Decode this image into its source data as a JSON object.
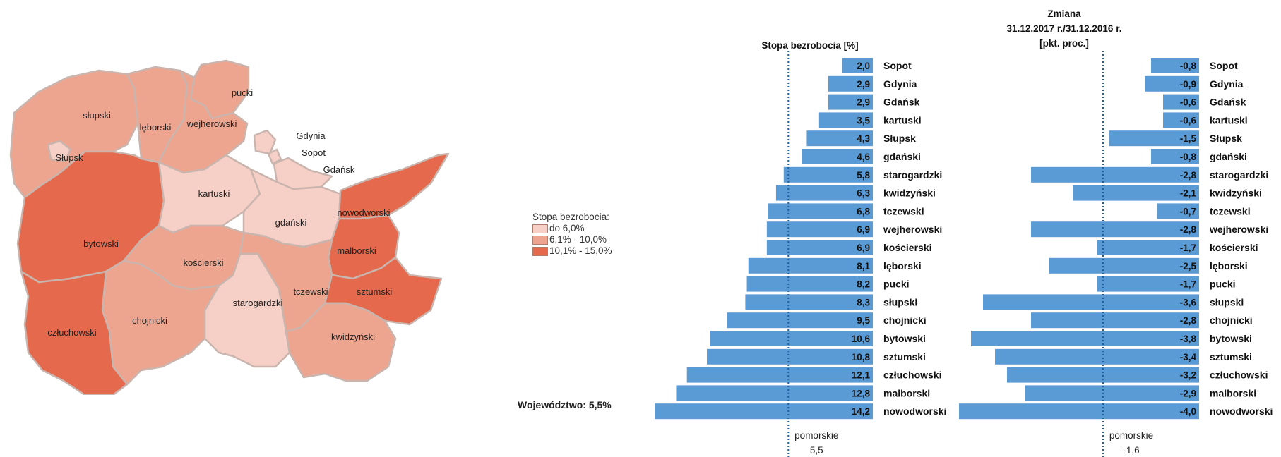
{
  "map": {
    "legend": {
      "title": "Stopa bezrobocia:",
      "items": [
        {
          "label": "do 6,0%",
          "color": "#f6cfc6"
        },
        {
          "label": "6,1% - 10,0%",
          "color": "#eea58f"
        },
        {
          "label": "10,1% - 15,0%",
          "color": "#e5694d"
        }
      ]
    },
    "regions": [
      {
        "name": "pucki",
        "class": 1
      },
      {
        "name": "słupski",
        "class": 1
      },
      {
        "name": "lęborski",
        "class": 1
      },
      {
        "name": "wejherowski",
        "class": 1
      },
      {
        "name": "Słupsk",
        "class": 0
      },
      {
        "name": "Gdynia",
        "class": 0
      },
      {
        "name": "Sopot",
        "class": 0
      },
      {
        "name": "Gdańsk",
        "class": 0
      },
      {
        "name": "kartuski",
        "class": 0
      },
      {
        "name": "gdański",
        "class": 0
      },
      {
        "name": "nowodworski",
        "class": 2
      },
      {
        "name": "malborski",
        "class": 2
      },
      {
        "name": "bytowski",
        "class": 2
      },
      {
        "name": "kościerski",
        "class": 1
      },
      {
        "name": "tczewski",
        "class": 1
      },
      {
        "name": "sztumski",
        "class": 2
      },
      {
        "name": "starogardzki",
        "class": 0
      },
      {
        "name": "chojnicki",
        "class": 1
      },
      {
        "name": "człuchowski",
        "class": 2
      },
      {
        "name": "kwidzyński",
        "class": 1
      }
    ],
    "summary": "Województwo: 5,5%"
  },
  "chart_data": [
    {
      "type": "bar",
      "orientation": "horizontal",
      "title": "Stopa bezrobocia [%]",
      "categories": [
        "Sopot",
        "Gdynia",
        "Gdańsk",
        "kartuski",
        "Słupsk",
        "gdański",
        "starogardzki",
        "kwidzyński",
        "tczewski",
        "wejherowski",
        "kościerski",
        "lęborski",
        "pucki",
        "słupski",
        "chojnicki",
        "bytowski",
        "sztumski",
        "człuchowski",
        "malborski",
        "nowodworski"
      ],
      "values": [
        2.0,
        2.9,
        2.9,
        3.5,
        4.3,
        4.6,
        5.8,
        6.3,
        6.8,
        6.9,
        6.9,
        8.1,
        8.2,
        8.3,
        9.5,
        10.6,
        10.8,
        12.1,
        12.8,
        14.2
      ],
      "value_labels": [
        "2,0",
        "2,9",
        "2,9",
        "3,5",
        "4,3",
        "4,6",
        "5,8",
        "6,3",
        "6,8",
        "6,9",
        "6,9",
        "8,1",
        "8,2",
        "8,3",
        "9,5",
        "10,6",
        "10,8",
        "12,1",
        "12,8",
        "14,2"
      ],
      "reference": {
        "value": 5.5,
        "label": "pomorskie",
        "value_label": "5,5"
      },
      "xlim": [
        0,
        14.2
      ],
      "bar_color": "#5b9bd5"
    },
    {
      "type": "bar",
      "orientation": "horizontal",
      "title_lines": [
        "Zmiana",
        "31.12.2017 r./31.12.2016 r.",
        "[pkt. proc.]"
      ],
      "categories": [
        "Sopot",
        "Gdynia",
        "Gdańsk",
        "kartuski",
        "Słupsk",
        "gdański",
        "starogardzki",
        "kwidzyński",
        "tczewski",
        "wejherowski",
        "kościerski",
        "lęborski",
        "pucki",
        "słupski",
        "chojnicki",
        "bytowski",
        "sztumski",
        "człuchowski",
        "malborski",
        "nowodworski"
      ],
      "values": [
        -0.8,
        -0.9,
        -0.6,
        -0.6,
        -1.5,
        -0.8,
        -2.8,
        -2.1,
        -0.7,
        -2.8,
        -1.7,
        -2.5,
        -1.7,
        -3.6,
        -2.8,
        -3.8,
        -3.4,
        -3.2,
        -2.9,
        -4.0
      ],
      "value_labels": [
        "-0,8",
        "-0,9",
        "-0,6",
        "-0,6",
        "-1,5",
        "-0,8",
        "-2,8",
        "-2,1",
        "-0,7",
        "-2,8",
        "-1,7",
        "-2,5",
        "-1,7",
        "-3,6",
        "-2,8",
        "-3,8",
        "-3,4",
        "-3,2",
        "-2,9",
        "-4,0"
      ],
      "reference": {
        "value": -1.6,
        "label": "pomorskie",
        "value_label": "-1,6"
      },
      "xlim": [
        -4.0,
        0
      ],
      "bar_color": "#5b9bd5"
    }
  ]
}
